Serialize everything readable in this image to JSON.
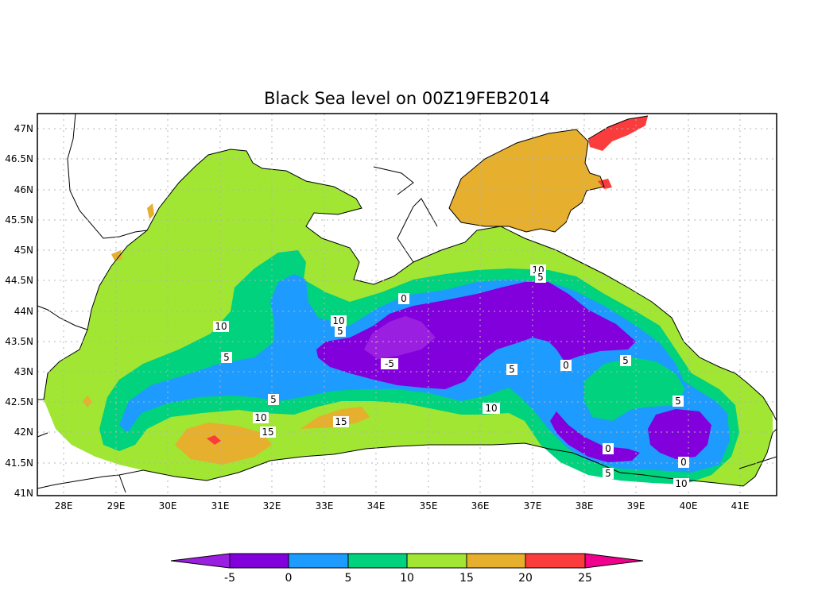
{
  "title": "Black Sea level on 00Z19FEB2014",
  "x_ticks": [
    "28E",
    "29E",
    "30E",
    "31E",
    "32E",
    "33E",
    "34E",
    "35E",
    "36E",
    "37E",
    "38E",
    "39E",
    "40E",
    "41E"
  ],
  "y_ticks": [
    "47N",
    "46.5N",
    "46N",
    "45.5N",
    "45N",
    "44.5N",
    "44N",
    "43.5N",
    "43N",
    "42.5N",
    "42N",
    "41.5N",
    "41N"
  ],
  "contour_labels": [
    {
      "id": "c10-west",
      "text": "10"
    },
    {
      "id": "c5-west",
      "text": "5"
    },
    {
      "id": "c10-mid",
      "text": "10"
    },
    {
      "id": "c5-mid",
      "text": "5"
    },
    {
      "id": "c0-north",
      "text": "0"
    },
    {
      "id": "cm5-center",
      "text": "-5"
    },
    {
      "id": "c10-ne",
      "text": "10"
    },
    {
      "id": "c5-ne",
      "text": "5"
    },
    {
      "id": "c5-s1",
      "text": "5"
    },
    {
      "id": "c10-s1",
      "text": "10"
    },
    {
      "id": "c15-sw",
      "text": "15"
    },
    {
      "id": "c15-s",
      "text": "15"
    },
    {
      "id": "c5-c",
      "text": "5"
    },
    {
      "id": "c0-e",
      "text": "0"
    },
    {
      "id": "c10-s2",
      "text": "10"
    },
    {
      "id": "c5-e",
      "text": "5"
    },
    {
      "id": "c5-ee",
      "text": "5"
    },
    {
      "id": "c0-se",
      "text": "0"
    },
    {
      "id": "c0-see",
      "text": "0"
    },
    {
      "id": "c5-se",
      "text": "5"
    },
    {
      "id": "c10-se",
      "text": "10"
    }
  ],
  "colorbar": {
    "labels": [
      "-5",
      "0",
      "5",
      "10",
      "15",
      "20",
      "25"
    ],
    "colors": [
      "#9b1fe0",
      "#8200dc",
      "#1e9bff",
      "#00d27d",
      "#a0e632",
      "#e6af2d",
      "#fa3c3c",
      "#f0008c"
    ]
  },
  "colors": {
    "land": "#ffffff",
    "coast": "#000000",
    "grid": "#b4b4b4"
  }
}
